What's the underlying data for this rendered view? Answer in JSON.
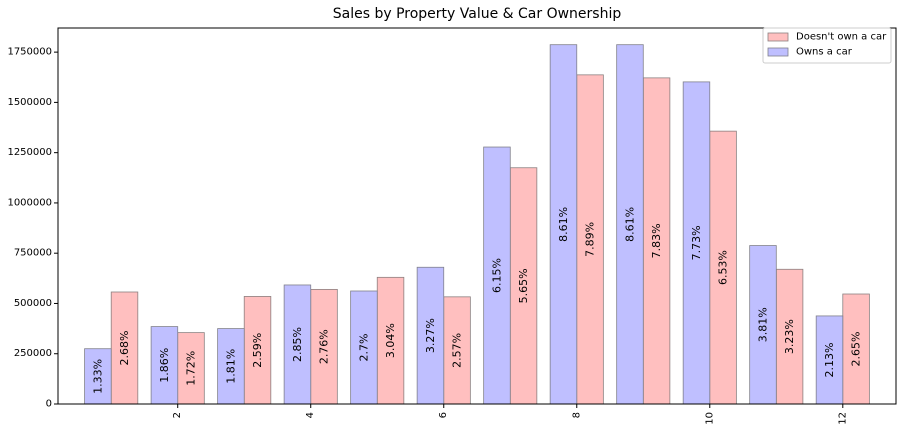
{
  "chart_data": {
    "type": "bar",
    "title": "Sales by Property Value & Car Ownership",
    "xlabel": "",
    "ylabel": "",
    "x": [
      1,
      2,
      3,
      4,
      5,
      6,
      7,
      8,
      9,
      10,
      11,
      12
    ],
    "xticks": [
      "2",
      "4",
      "6",
      "8",
      "10",
      "12"
    ],
    "xtick_values": [
      2,
      4,
      6,
      8,
      10,
      12
    ],
    "yticks": [
      "0",
      "250000",
      "500000",
      "750000",
      "1000000",
      "1250000",
      "1500000",
      "1750000"
    ],
    "ytick_values": [
      0,
      250000,
      500000,
      750000,
      1000000,
      1250000,
      1500000,
      1750000
    ],
    "ylim": [
      0,
      1870000
    ],
    "grid": false,
    "legend_position": "top-right",
    "series": [
      {
        "name": "Doesn't own a car",
        "color": "#ffbfbf",
        "edge_color": "#8c8080",
        "values": [
          557000,
          355000,
          535000,
          570000,
          630000,
          533000,
          1175000,
          1637000,
          1622000,
          1357000,
          670000,
          547000
        ],
        "labels": [
          "2.68%",
          "1.72%",
          "2.59%",
          "2.76%",
          "3.04%",
          "2.57%",
          "5.65%",
          "7.89%",
          "7.83%",
          "6.53%",
          "3.23%",
          "2.65%"
        ]
      },
      {
        "name": "Owns a car",
        "color": "#bfbfff",
        "edge_color": "#80808c",
        "values": [
          275000,
          385000,
          375000,
          592000,
          562000,
          680000,
          1278000,
          1787000,
          1787000,
          1602000,
          788000,
          438000
        ],
        "labels": [
          "1.33%",
          "1.86%",
          "1.81%",
          "2.85%",
          "2.7%",
          "3.27%",
          "6.15%",
          "8.61%",
          "8.61%",
          "7.73%",
          "3.81%",
          "2.13%"
        ]
      }
    ]
  }
}
